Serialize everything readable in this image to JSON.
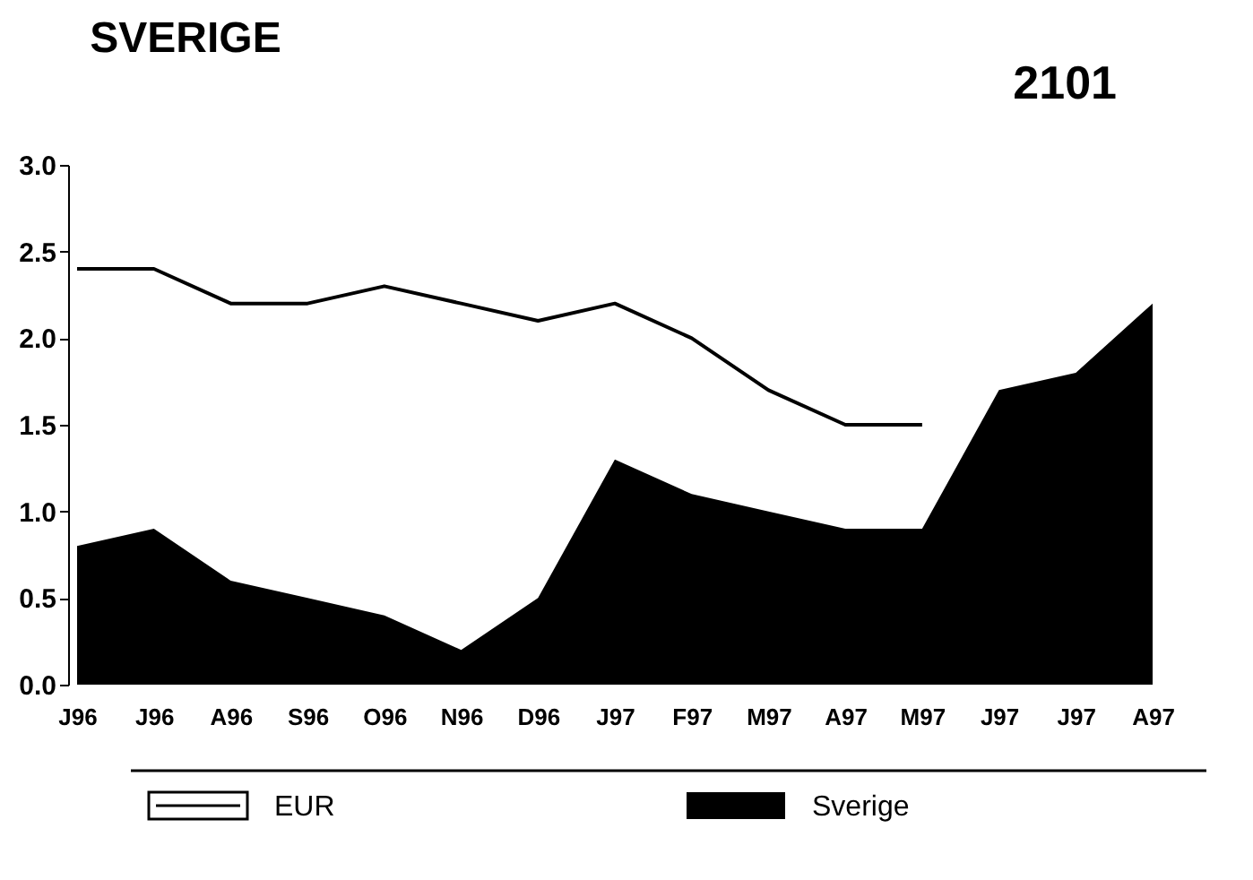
{
  "chart_data": {
    "type": "line",
    "title": "SVERIGE",
    "annotations": [
      "2101"
    ],
    "categories": [
      "J96",
      "J96",
      "A96",
      "S96",
      "O96",
      "N96",
      "D96",
      "J97",
      "F97",
      "M97",
      "A97",
      "M97",
      "J97",
      "J97",
      "A97"
    ],
    "series": [
      {
        "name": "EUR",
        "color": "#000000",
        "values": [
          2.4,
          2.4,
          2.2,
          2.2,
          2.3,
          2.2,
          2.1,
          2.2,
          2.0,
          1.7,
          1.5,
          1.5,
          null,
          null,
          null
        ]
      },
      {
        "name": "Sverige",
        "type": "area",
        "color": "#000000",
        "values": [
          0.8,
          0.9,
          0.6,
          0.5,
          0.4,
          0.2,
          0.5,
          1.3,
          1.1,
          1.0,
          0.9,
          0.9,
          1.7,
          1.8,
          2.2
        ]
      }
    ],
    "ylim": [
      0,
      3
    ],
    "yticks": [
      {
        "value": 0,
        "label": "0.0"
      },
      0.5,
      {
        "value": 1,
        "label": "1.0"
      },
      1.5,
      {
        "value": 2,
        "label": "2.0"
      },
      2.5,
      {
        "value": 3,
        "label": "3.0"
      }
    ],
    "grid": false,
    "legend": "bottom"
  }
}
